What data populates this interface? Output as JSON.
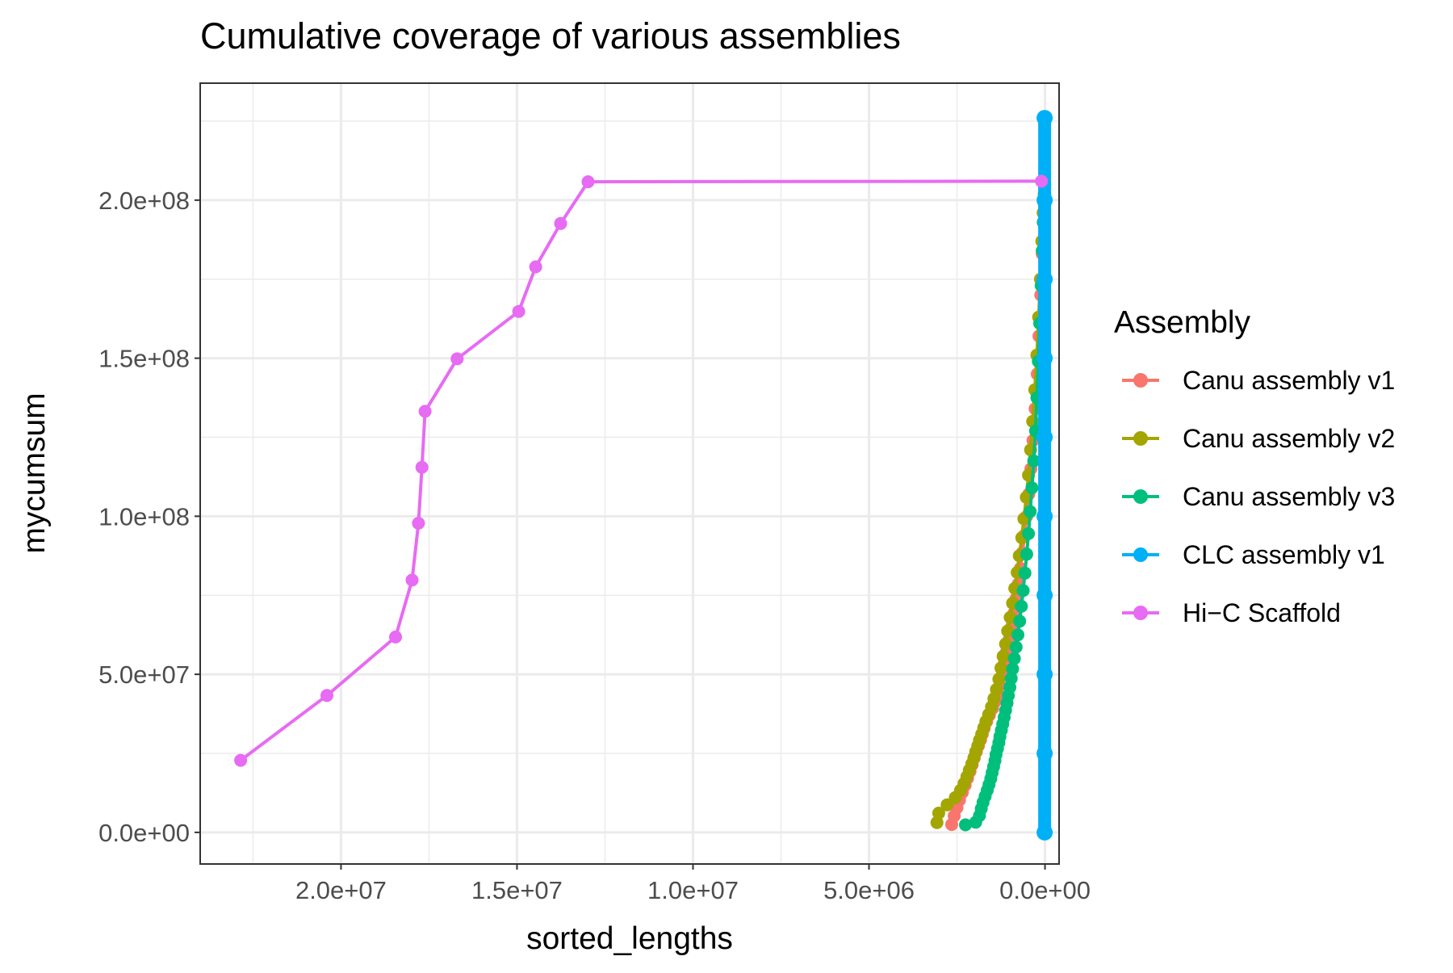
{
  "chart_data": {
    "type": "line",
    "title": "Cumulative coverage of various assemblies",
    "xlabel": "sorted_lengths",
    "ylabel": "mycumsum",
    "x_reversed": true,
    "xlim": [
      24000000,
      -400000
    ],
    "ylim": [
      -10000000,
      237000000
    ],
    "x_ticks": [
      {
        "value": 20000000,
        "label": "2.0e+07"
      },
      {
        "value": 15000000,
        "label": "1.5e+07"
      },
      {
        "value": 10000000,
        "label": "1.0e+07"
      },
      {
        "value": 5000000,
        "label": "5.0e+06"
      },
      {
        "value": 0,
        "label": "0.0e+00"
      }
    ],
    "y_ticks": [
      {
        "value": 0,
        "label": "0.0e+00"
      },
      {
        "value": 50000000,
        "label": "5.0e+07"
      },
      {
        "value": 100000000,
        "label": "1.0e+08"
      },
      {
        "value": 150000000,
        "label": "1.5e+08"
      },
      {
        "value": 200000000,
        "label": "2.0e+08"
      }
    ],
    "grid": true,
    "legend": {
      "title": "Assembly",
      "position": "right"
    },
    "series": [
      {
        "name": "Canu assembly v1",
        "color": "#F8766D",
        "points": [
          [
            2650000,
            2500000
          ],
          [
            2580000,
            5200000
          ],
          [
            2500000,
            7800000
          ],
          [
            2430000,
            10200000
          ],
          [
            2350000,
            12600000
          ],
          [
            2270000,
            14900000
          ],
          [
            2200000,
            17100000
          ],
          [
            2130000,
            19300000
          ],
          [
            2070000,
            21400000
          ],
          [
            2010000,
            23500000
          ],
          [
            1950000,
            25500000
          ],
          [
            1890000,
            27400000
          ],
          [
            1830000,
            29300000
          ],
          [
            1780000,
            31100000
          ],
          [
            1730000,
            32900000
          ],
          [
            1660000,
            35000000
          ],
          [
            1580000,
            37100000
          ],
          [
            1490000,
            39200000
          ],
          [
            1420000,
            41300000
          ],
          [
            1340000,
            43600000
          ],
          [
            1280000,
            46500000
          ],
          [
            1220000,
            49700000
          ],
          [
            1150000,
            53600000
          ],
          [
            1090000,
            57200000
          ],
          [
            1020000,
            61000000
          ],
          [
            950000,
            65000000
          ],
          [
            880000,
            69400000
          ],
          [
            820000,
            74000000
          ],
          [
            760000,
            78600000
          ],
          [
            700000,
            83500000
          ],
          [
            640000,
            88500000
          ],
          [
            580000,
            94000000
          ],
          [
            520000,
            100000000
          ],
          [
            460000,
            107000000
          ],
          [
            400000,
            115000000
          ],
          [
            340000,
            124000000
          ],
          [
            280000,
            134000000
          ],
          [
            220000,
            145000000
          ],
          [
            170000,
            157000000
          ],
          [
            120000,
            170000000
          ],
          [
            80000,
            183000000
          ],
          [
            50000,
            193000000
          ],
          [
            20000,
            201000000
          ],
          [
            5000,
            204000000
          ]
        ]
      },
      {
        "name": "Canu assembly v2",
        "color": "#A3A500",
        "points": [
          [
            3070000,
            3100000
          ],
          [
            3020000,
            6100000
          ],
          [
            2780000,
            8700000
          ],
          [
            2550000,
            11000000
          ],
          [
            2400000,
            13300000
          ],
          [
            2300000,
            15500000
          ],
          [
            2220000,
            17600000
          ],
          [
            2150000,
            19700000
          ],
          [
            2080000,
            21700000
          ],
          [
            2020000,
            23600000
          ],
          [
            1970000,
            25500000
          ],
          [
            1910000,
            27400000
          ],
          [
            1860000,
            29200000
          ],
          [
            1800000,
            31100000
          ],
          [
            1740000,
            33100000
          ],
          [
            1680000,
            35100000
          ],
          [
            1600000,
            37300000
          ],
          [
            1520000,
            39700000
          ],
          [
            1450000,
            42300000
          ],
          [
            1380000,
            45200000
          ],
          [
            1310000,
            48500000
          ],
          [
            1250000,
            52000000
          ],
          [
            1190000,
            55700000
          ],
          [
            1120000,
            59600000
          ],
          [
            1060000,
            63700000
          ],
          [
            990000,
            68000000
          ],
          [
            920000,
            72500000
          ],
          [
            860000,
            77200000
          ],
          [
            790000,
            82200000
          ],
          [
            730000,
            87500000
          ],
          [
            660000,
            93200000
          ],
          [
            600000,
            99200000
          ],
          [
            530000,
            106000000
          ],
          [
            470000,
            113000000
          ],
          [
            410000,
            121000000
          ],
          [
            350000,
            130000000
          ],
          [
            290000,
            140000000
          ],
          [
            230000,
            151000000
          ],
          [
            180000,
            163000000
          ],
          [
            130000,
            175000000
          ],
          [
            90000,
            187000000
          ],
          [
            55000,
            196000000
          ],
          [
            25000,
            202000000
          ],
          [
            5000,
            205000000
          ]
        ]
      },
      {
        "name": "Canu assembly v3",
        "color": "#00BF7D",
        "points": [
          [
            2260000,
            2400000
          ],
          [
            1970000,
            3200000
          ],
          [
            1860000,
            5300000
          ],
          [
            1810000,
            7500000
          ],
          [
            1760000,
            9500000
          ],
          [
            1700000,
            11400000
          ],
          [
            1640000,
            13300000
          ],
          [
            1590000,
            15100000
          ],
          [
            1540000,
            17000000
          ],
          [
            1500000,
            18900000
          ],
          [
            1460000,
            20800000
          ],
          [
            1420000,
            22700000
          ],
          [
            1390000,
            24600000
          ],
          [
            1350000,
            26500000
          ],
          [
            1310000,
            28400000
          ],
          [
            1280000,
            30300000
          ],
          [
            1240000,
            32300000
          ],
          [
            1200000,
            34300000
          ],
          [
            1160000,
            36400000
          ],
          [
            1120000,
            38600000
          ],
          [
            1080000,
            40900000
          ],
          [
            1040000,
            43300000
          ],
          [
            1000000,
            45900000
          ],
          [
            960000,
            48700000
          ],
          [
            920000,
            51700000
          ],
          [
            870000,
            55000000
          ],
          [
            820000,
            58600000
          ],
          [
            770000,
            62500000
          ],
          [
            720000,
            66800000
          ],
          [
            670000,
            71500000
          ],
          [
            620000,
            76500000
          ],
          [
            570000,
            82000000
          ],
          [
            520000,
            88000000
          ],
          [
            470000,
            94500000
          ],
          [
            420000,
            101500000
          ],
          [
            370000,
            109000000
          ],
          [
            320000,
            117500000
          ],
          [
            270000,
            127000000
          ],
          [
            230000,
            137500000
          ],
          [
            190000,
            149000000
          ],
          [
            150000,
            161000000
          ],
          [
            110000,
            173000000
          ],
          [
            80000,
            184000000
          ],
          [
            50000,
            193000000
          ],
          [
            25000,
            199000000
          ],
          [
            5000,
            202000000
          ]
        ]
      },
      {
        "name": "CLC assembly v1",
        "color": "#00B0F6",
        "points": [
          [
            10000,
            0
          ],
          [
            10000,
            25000000
          ],
          [
            10000,
            50000000
          ],
          [
            10000,
            75000000
          ],
          [
            10000,
            100000000
          ],
          [
            10000,
            125000000
          ],
          [
            10000,
            150000000
          ],
          [
            10000,
            175000000
          ],
          [
            10000,
            200000000
          ],
          [
            10000,
            226000000
          ]
        ]
      },
      {
        "name": "Hi−C Scaffold",
        "color": "#E76BF3",
        "points": [
          [
            22850000,
            22800000
          ],
          [
            20400000,
            43300000
          ],
          [
            18450000,
            61800000
          ],
          [
            17980000,
            79800000
          ],
          [
            17800000,
            97800000
          ],
          [
            17700000,
            115500000
          ],
          [
            17610000,
            133200000
          ],
          [
            16700000,
            149800000
          ],
          [
            14950000,
            164800000
          ],
          [
            14470000,
            178900000
          ],
          [
            13760000,
            192600000
          ],
          [
            12980000,
            205800000
          ],
          [
            100000,
            206000000
          ]
        ]
      }
    ]
  }
}
